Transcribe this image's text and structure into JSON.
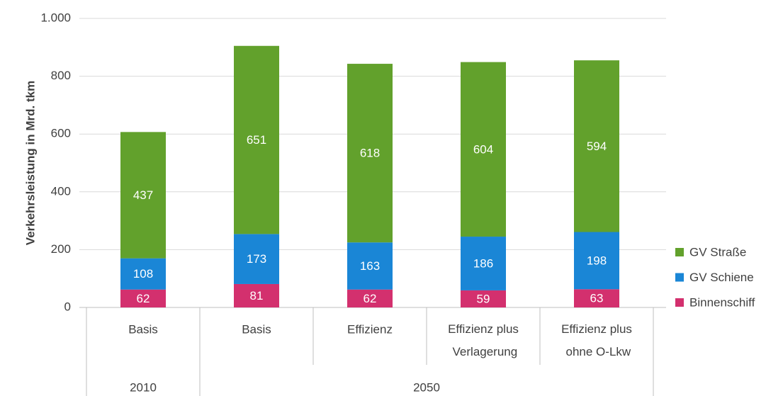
{
  "chart_data": {
    "type": "stacked_bar",
    "y_label": "Verkehrsleistung in Mrd. tkm",
    "categories": [
      "Basis",
      "Basis",
      "Effizienz",
      "Effizienz plus Verlagerung",
      "Effizienz plus ohne O-Lkw"
    ],
    "groups": [
      {
        "label": "2010",
        "count": 1
      },
      {
        "label": "2050",
        "count": 4
      }
    ],
    "series": [
      {
        "name": "Binnenschiff",
        "color": "#d3306e",
        "values": [
          62,
          81,
          62,
          59,
          63
        ]
      },
      {
        "name": "GV Schiene",
        "color": "#1a86d6",
        "values": [
          108,
          173,
          163,
          186,
          198
        ]
      },
      {
        "name": "GV Straße",
        "color": "#62a12c",
        "values": [
          437,
          651,
          618,
          604,
          594
        ]
      }
    ],
    "ylim": [
      0,
      1000
    ],
    "yticks": [
      0,
      200,
      400,
      600,
      800,
      {
        "value": 1000,
        "label": "1.000"
      }
    ],
    "grid": true,
    "legend": "right"
  }
}
